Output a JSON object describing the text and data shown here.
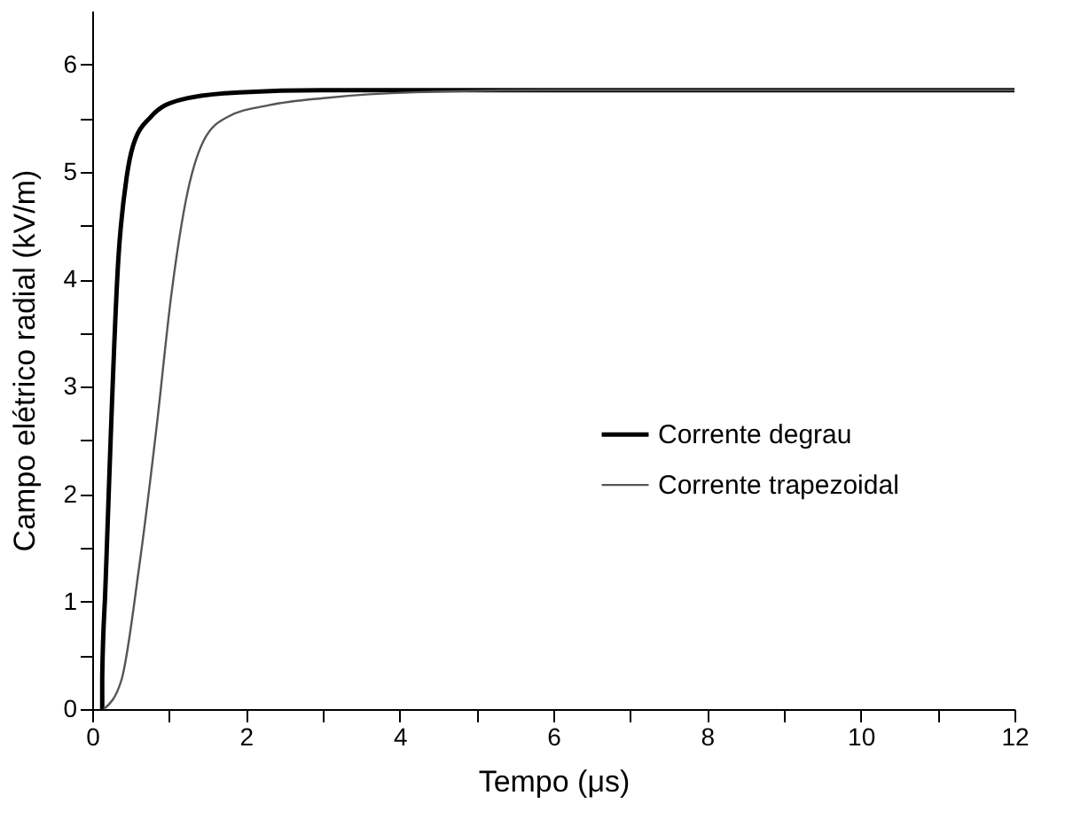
{
  "chart_data": {
    "type": "line",
    "xlabel": "Tempo (μs)",
    "ylabel": "Campo elétrico radial (kV/m)",
    "xlim": [
      0,
      12
    ],
    "ylim": [
      0,
      6.5
    ],
    "xticks": [
      0,
      {
        "value": 1,
        "label": null
      },
      2,
      {
        "value": 3,
        "label": null
      },
      4,
      {
        "value": 5,
        "label": null
      },
      6,
      {
        "value": 7,
        "label": null
      },
      8,
      {
        "value": 9,
        "label": null
      },
      10,
      {
        "value": 11,
        "label": null
      },
      12
    ],
    "yticks": [
      0,
      {
        "value": 0.5,
        "label": null
      },
      1,
      {
        "value": 1.5,
        "label": null
      },
      2,
      {
        "value": 2.5,
        "label": null
      },
      3,
      {
        "value": 3.5,
        "label": null
      },
      4,
      {
        "value": 4.5,
        "label": null
      },
      5,
      {
        "value": 5.5,
        "label": null
      },
      6
    ],
    "grid": false,
    "legend": "right",
    "marker": "none",
    "line_style": "solid",
    "series": [
      {
        "name": "Corrente degrau",
        "color": "#000000",
        "x": [
          0.13,
          0.13,
          0.17,
          0.34,
          0.45,
          0.53,
          0.76,
          1.15,
          1.92,
          3,
          6,
          12
        ],
        "values": [
          0,
          0.3,
          1.1,
          4.19,
          4.96,
          5.24,
          5.51,
          5.67,
          5.74,
          5.76,
          5.76,
          5.76
        ]
      },
      {
        "name": "Corrente trapezoidal",
        "color": "#555555",
        "x": [
          0.15,
          0.38,
          0.61,
          0.84,
          1.03,
          1.22,
          1.45,
          1.76,
          2.3,
          3.07,
          4.2,
          6,
          12
        ],
        "values": [
          0,
          0.27,
          1.32,
          2.64,
          3.86,
          4.74,
          5.29,
          5.51,
          5.62,
          5.69,
          5.74,
          5.76,
          5.76
        ]
      }
    ]
  }
}
